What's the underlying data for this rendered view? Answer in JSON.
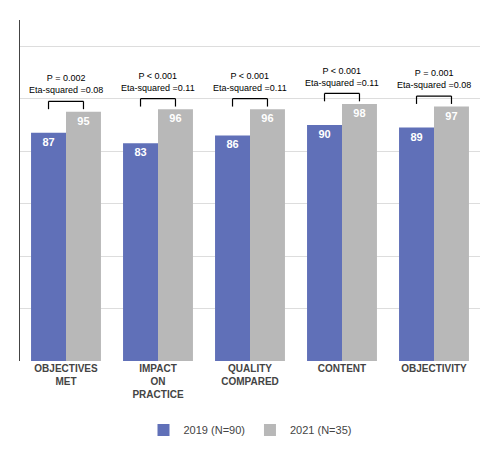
{
  "chart_data": {
    "type": "bar",
    "categories": [
      "OBJECTIVES MET",
      "IMPACT ON PRACTICE",
      "QUALITY COMPARED",
      "CONTENT",
      "OBJECTIVITY"
    ],
    "series": [
      {
        "name": "2019 (N=90)",
        "color": "#6070b8",
        "values": [
          87,
          83,
          86,
          90,
          89
        ]
      },
      {
        "name": "2021 (N=35)",
        "color": "#b8b8b8",
        "values": [
          95,
          96,
          96,
          98,
          97
        ]
      }
    ],
    "ylim": [
      0,
      130
    ],
    "yticks": [
      0,
      20,
      40,
      60,
      80,
      100,
      120
    ],
    "grid": true,
    "tick_labels": "x",
    "data_labels": true,
    "legend": "bottom",
    "annotations": [
      {
        "category": "OBJECTIVES MET",
        "texts": [
          "P = 0.002",
          "Eta-squared =0.08"
        ]
      },
      {
        "category": "IMPACT ON PRACTICE",
        "texts": [
          "P < 0.001",
          "Eta-squared =0.11"
        ]
      },
      {
        "category": "QUALITY COMPARED",
        "texts": [
          "P < 0.001",
          "Eta-squared =0.11"
        ]
      },
      {
        "category": "CONTENT",
        "texts": [
          "P < 0.001",
          "Eta-squared =0.11"
        ]
      },
      {
        "category": "OBJECTIVITY",
        "texts": [
          "P = 0.001",
          "Eta-squared =0.08"
        ]
      }
    ]
  }
}
